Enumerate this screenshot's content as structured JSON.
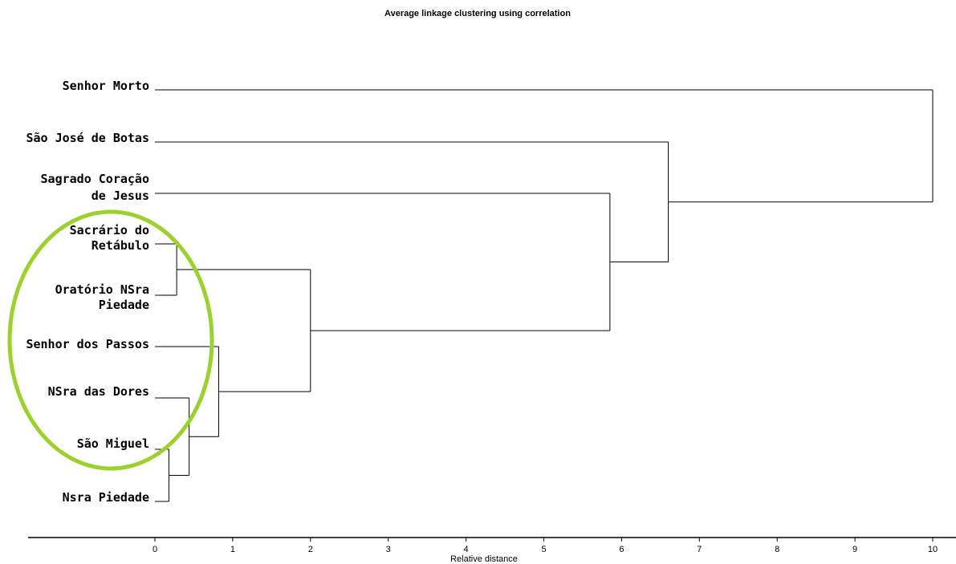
{
  "chart_data": {
    "type": "dendrogram",
    "title": "Average linkage clustering using correlation",
    "xlabel": "Relative distance",
    "xlim": [
      0,
      10
    ],
    "xticks": [
      0,
      1,
      2,
      3,
      4,
      5,
      6,
      7,
      8,
      9,
      10
    ],
    "leaves": [
      {
        "id": "L1",
        "lines": [
          "Senhor Morto"
        ]
      },
      {
        "id": "L2",
        "lines": [
          "São José de Botas"
        ]
      },
      {
        "id": "L3",
        "lines": [
          "Sagrado Coração",
          "de Jesus"
        ]
      },
      {
        "id": "L4",
        "lines": [
          "Sacrário do",
          "Retábulo"
        ]
      },
      {
        "id": "L5",
        "lines": [
          "Oratório NSra",
          "Piedade"
        ]
      },
      {
        "id": "L6",
        "lines": [
          "Senhor dos Passos"
        ]
      },
      {
        "id": "L7",
        "lines": [
          "NSra das Dores"
        ]
      },
      {
        "id": "L8",
        "lines": [
          "São Miguel"
        ]
      },
      {
        "id": "L9",
        "lines": [
          "Nsra Piedade"
        ]
      }
    ],
    "merges": [
      {
        "id": "M1",
        "children": [
          "L8",
          "L9"
        ],
        "height": 0.18
      },
      {
        "id": "M2",
        "children": [
          "L4",
          "L5"
        ],
        "height": 0.28
      },
      {
        "id": "M3",
        "children": [
          "L7",
          "M1"
        ],
        "height": 0.44
      },
      {
        "id": "M4",
        "children": [
          "L6",
          "M3"
        ],
        "height": 0.82
      },
      {
        "id": "M5",
        "children": [
          "M2",
          "M4"
        ],
        "height": 2.0
      },
      {
        "id": "M6",
        "children": [
          "L3",
          "M5"
        ],
        "height": 5.85
      },
      {
        "id": "M7",
        "children": [
          "L2",
          "M6"
        ],
        "height": 6.6
      },
      {
        "id": "M8",
        "children": [
          "L1",
          "M7"
        ],
        "height": 10.0
      }
    ],
    "highlight": {
      "shape": "ellipse",
      "color": "#9bd12e",
      "encloses": [
        "L4",
        "L5",
        "L6",
        "L7",
        "L8"
      ]
    }
  }
}
